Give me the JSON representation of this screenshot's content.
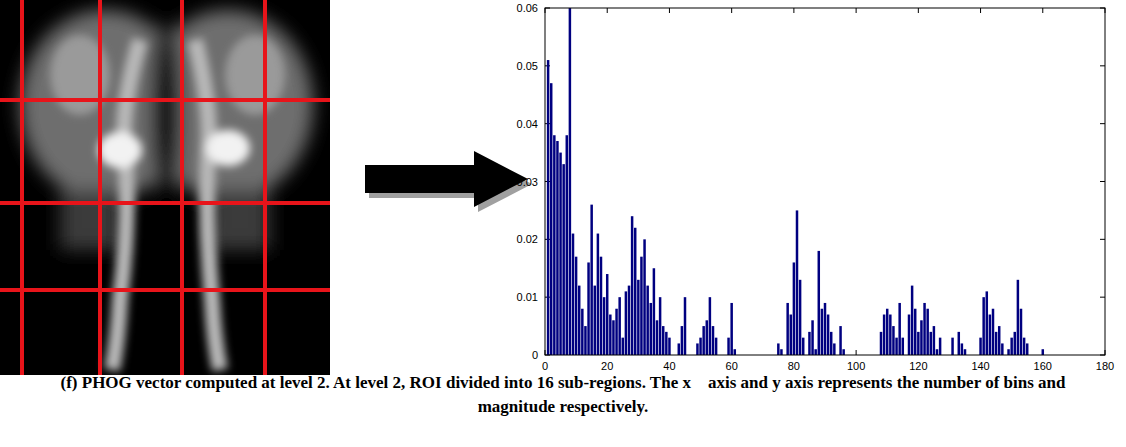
{
  "chart_data": {
    "type": "bar",
    "caption": "(f) PHOG vector computed at level 2. At level 2, ROI divided into 16 sub-regions. The x    axis and y axis represents the number of bins and magnitude respectively.",
    "color": "#000080",
    "xlim": [
      0,
      180
    ],
    "xticks": [
      0,
      20,
      40,
      60,
      80,
      100,
      120,
      140,
      160,
      180
    ],
    "ylim": [
      0,
      0.06
    ],
    "yticks": [
      0,
      0.01,
      0.02,
      0.03,
      0.04,
      0.05,
      0.06
    ],
    "grid": false,
    "x": [
      1,
      2,
      3,
      4,
      5,
      6,
      7,
      8,
      9,
      10,
      11,
      12,
      13,
      14,
      15,
      16,
      17,
      18,
      19,
      20,
      21,
      22,
      23,
      24,
      25,
      26,
      27,
      28,
      29,
      30,
      31,
      32,
      33,
      34,
      35,
      36,
      37,
      38,
      39,
      40,
      41,
      42,
      43,
      44,
      45,
      46,
      47,
      48,
      49,
      50,
      51,
      52,
      53,
      54,
      55,
      56,
      57,
      58,
      59,
      60,
      61,
      62,
      63,
      64,
      65,
      66,
      67,
      68,
      69,
      70,
      71,
      72,
      73,
      74,
      75,
      76,
      77,
      78,
      79,
      80,
      81,
      82,
      83,
      84,
      85,
      86,
      87,
      88,
      89,
      90,
      91,
      92,
      93,
      94,
      95,
      96,
      97,
      98,
      99,
      100,
      101,
      102,
      103,
      104,
      105,
      106,
      107,
      108,
      109,
      110,
      111,
      112,
      113,
      114,
      115,
      116,
      117,
      118,
      119,
      120,
      121,
      122,
      123,
      124,
      125,
      126,
      127,
      128,
      129,
      130,
      131,
      132,
      133,
      134,
      135,
      136,
      137,
      138,
      139,
      140,
      141,
      142,
      143,
      144,
      145,
      146,
      147,
      148,
      149,
      150,
      151,
      152,
      153,
      154,
      155,
      156,
      157,
      158,
      159,
      160
    ],
    "values": [
      0.051,
      0.047,
      0.038,
      0.037,
      0.035,
      0.033,
      0.038,
      0.06,
      0.021,
      0.017,
      0.012,
      0.008,
      0.005,
      0.016,
      0.026,
      0.012,
      0.021,
      0.017,
      0.01,
      0.014,
      0.007,
      0.006,
      0.008,
      0.01,
      0.003,
      0.011,
      0.012,
      0.024,
      0.022,
      0.013,
      0.017,
      0.02,
      0.012,
      0.009,
      0.015,
      0.006,
      0.01,
      0.005,
      0.004,
      0.003,
      0,
      0,
      0.002,
      0.005,
      0.01,
      0,
      0,
      0,
      0.002,
      0.003,
      0.005,
      0.006,
      0.01,
      0.005,
      0.003,
      0,
      0,
      0,
      0.003,
      0.009,
      0.001,
      0,
      0,
      0,
      0,
      0,
      0,
      0,
      0,
      0,
      0,
      0,
      0,
      0,
      0.002,
      0.001,
      0,
      0.009,
      0.007,
      0.016,
      0.025,
      0.013,
      0.003,
      0,
      0.004,
      0.006,
      0.001,
      0.018,
      0.008,
      0.009,
      0.007,
      0.004,
      0.002,
      0,
      0.005,
      0.001,
      0,
      0,
      0,
      0,
      0,
      0,
      0,
      0,
      0,
      0,
      0,
      0.004,
      0.007,
      0.008,
      0.007,
      0.005,
      0.003,
      0.009,
      0.003,
      0,
      0.007,
      0.012,
      0.008,
      0.004,
      0.006,
      0.009,
      0.008,
      0.004,
      0.005,
      0.001,
      0.003,
      0,
      0,
      0,
      0.003,
      0,
      0.004,
      0.002,
      0.001,
      0,
      0,
      0,
      0,
      0.003,
      0.01,
      0.011,
      0.007,
      0.008,
      0.004,
      0.005,
      0.002,
      0,
      0.001,
      0.003,
      0.004,
      0.013,
      0.008,
      0.003,
      0.002,
      0,
      0,
      0,
      0,
      0.001
    ]
  }
}
